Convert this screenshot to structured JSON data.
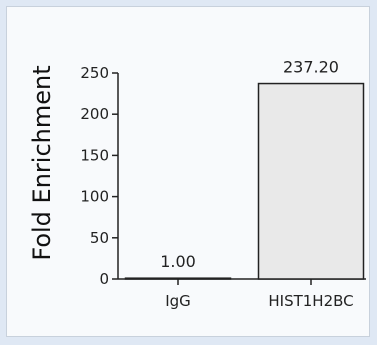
{
  "chart_data": {
    "type": "bar",
    "categories": [
      "IgG",
      "HIST1H2BC"
    ],
    "values": [
      1.0,
      237.2
    ],
    "data_labels": [
      "1.00",
      "237.20"
    ],
    "title": "",
    "xlabel": "",
    "ylabel": "Fold Enrichment",
    "ylim": [
      0,
      250
    ],
    "yticks": [
      "0",
      "50",
      "100",
      "150",
      "200",
      "250"
    ],
    "grid": false,
    "bar_fill": "#e9e9e9",
    "bar_stroke": "#222222"
  }
}
